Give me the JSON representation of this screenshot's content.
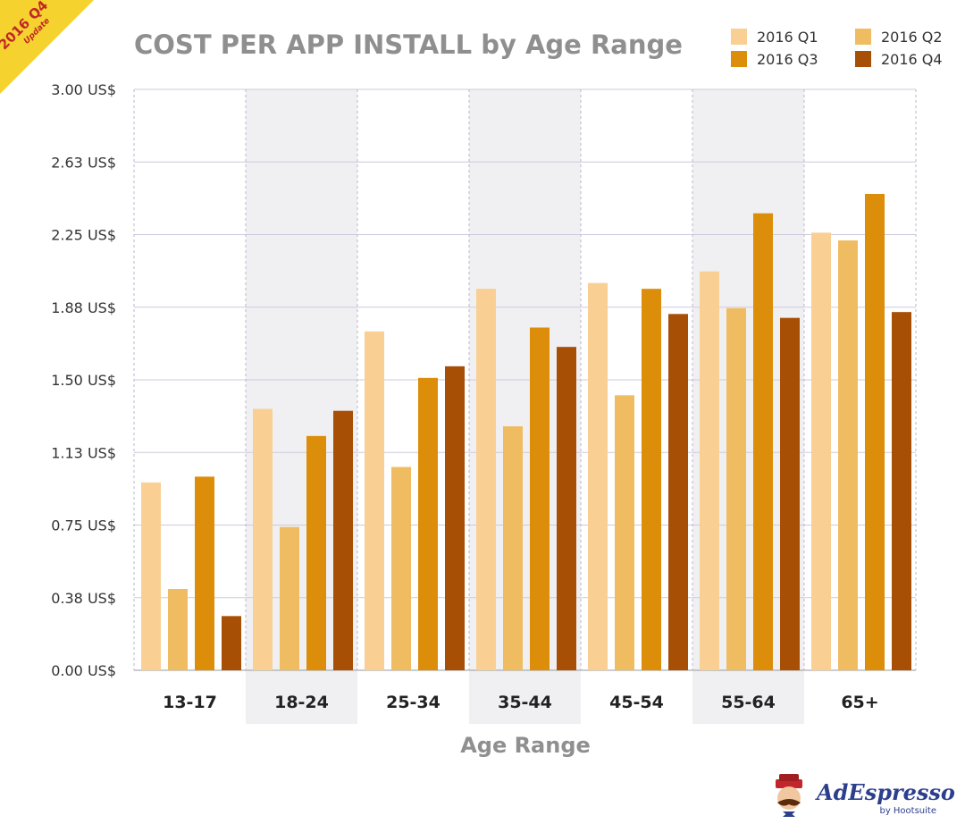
{
  "badge": {
    "line1": "2016 Q4",
    "line2": "Update"
  },
  "brand": {
    "name": "AdEspresso",
    "sub": "by Hootsuite"
  },
  "colors": {
    "q1": "#f9cf94",
    "q2": "#f0bc62",
    "q3": "#dc8d0a",
    "q4": "#a84f06",
    "title": "#8f8f8f",
    "badge": "#f6d22e",
    "badge_text": "#c0262a",
    "band": "#f0f0f3",
    "brand": "#2c3f8d"
  },
  "chart_data": {
    "type": "bar",
    "title": "COST PER APP INSTALL by Age Range",
    "xlabel": "Age Range",
    "ylabel": "",
    "ylim": [
      0,
      3.0
    ],
    "yticks": [
      "0.00 US$",
      "0.38 US$",
      "0.75 US$",
      "1.13 US$",
      "1.50 US$",
      "1.88 US$",
      "2.25 US$",
      "2.63 US$",
      "3.00 US$"
    ],
    "categories": [
      "13-17",
      "18-24",
      "25-34",
      "35-44",
      "45-54",
      "55-64",
      "65+"
    ],
    "series": [
      {
        "name": "2016 Q1",
        "values": [
          0.97,
          1.35,
          1.75,
          1.97,
          2.0,
          2.06,
          2.26
        ]
      },
      {
        "name": "2016 Q2",
        "values": [
          0.42,
          0.74,
          1.05,
          1.26,
          1.42,
          1.87,
          2.22
        ]
      },
      {
        "name": "2016 Q3",
        "values": [
          1.0,
          1.21,
          1.51,
          1.77,
          1.97,
          2.36,
          2.46
        ]
      },
      {
        "name": "2016 Q4",
        "values": [
          0.28,
          1.34,
          1.57,
          1.67,
          1.84,
          1.82,
          1.85
        ]
      }
    ],
    "legend_position": "top-right",
    "grid": true
  }
}
